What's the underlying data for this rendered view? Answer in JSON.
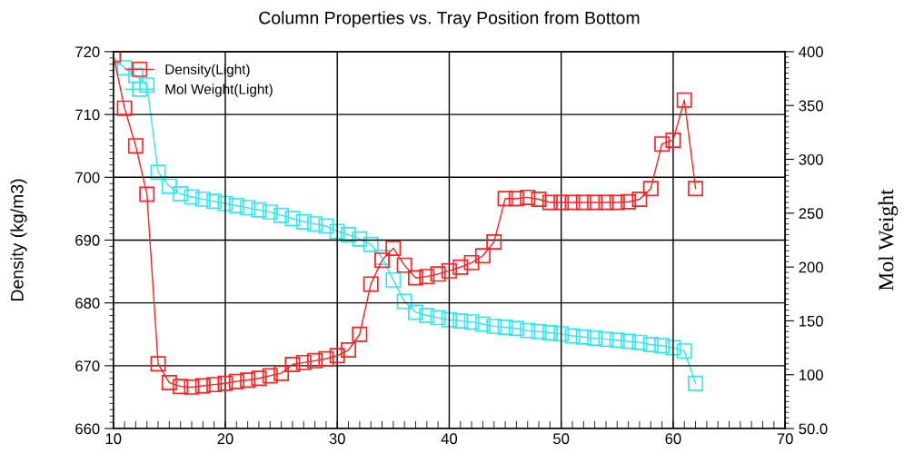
{
  "chart_data": {
    "type": "line",
    "title": "Column Properties vs. Tray Position from Bottom",
    "xlabel": null,
    "ylabel": "Density (kg/m3)",
    "y2label": "Mol Weight",
    "x": [
      10,
      11,
      12,
      13,
      14,
      15,
      16,
      17,
      18,
      19,
      20,
      21,
      22,
      23,
      24,
      25,
      26,
      27,
      28,
      29,
      30,
      31,
      32,
      33,
      34,
      35,
      36,
      37,
      38,
      39,
      40,
      41,
      42,
      43,
      44,
      45,
      46,
      47,
      48,
      49,
      50,
      51,
      52,
      53,
      54,
      55,
      56,
      57,
      58,
      59,
      60,
      61,
      62
    ],
    "series": [
      {
        "name": "Density(Light)",
        "color": "#ff2020",
        "values": [
          719.5,
          711,
          705,
          697.3,
          670.3,
          667.3,
          666.7,
          666.6,
          666.8,
          667.0,
          667.2,
          667.5,
          667.7,
          668.0,
          668.4,
          668.8,
          670.2,
          670.5,
          670.8,
          671.1,
          671.6,
          672.5,
          675,
          683,
          686.8,
          688.7,
          686,
          684,
          684.2,
          684.6,
          685.1,
          685.7,
          686.4,
          687.5,
          689.7,
          696.6,
          696.6,
          696.8,
          696.5,
          696,
          696,
          696,
          696,
          696,
          696,
          696,
          696.1,
          696.5,
          698.2,
          705.3,
          705.9,
          712.3,
          698.2
        ]
      },
      {
        "name": "Mol Weight(Light)",
        "color": "#30e8f0",
        "axis": "y2",
        "values": [
          395,
          385,
          378,
          369,
          288,
          275,
          268,
          265,
          263,
          261,
          259,
          257,
          255,
          253,
          251,
          248,
          245,
          242,
          240,
          238,
          233,
          230,
          226,
          221,
          209,
          188,
          168,
          158,
          155,
          153,
          151,
          150,
          149,
          147,
          145,
          144,
          143,
          141,
          140,
          139,
          138,
          136,
          135,
          134,
          133,
          132,
          131,
          130,
          128,
          127,
          125,
          122,
          92
        ]
      }
    ],
    "xlim": [
      10,
      70
    ],
    "xticks": [
      10,
      20,
      30,
      40,
      50,
      60,
      70
    ],
    "ylim": [
      660,
      720
    ],
    "yticks": [
      660,
      670,
      680,
      690,
      700,
      710,
      720
    ],
    "y2lim": [
      50,
      400
    ],
    "y2ticks": [
      {
        "value": 50,
        "label": "50.0"
      },
      100,
      150,
      200,
      250,
      300,
      350,
      400
    ],
    "grid": true,
    "legend": "top left",
    "marker": "square",
    "line_style": "solid"
  }
}
